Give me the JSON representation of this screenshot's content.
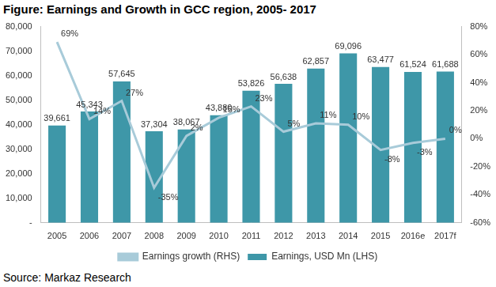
{
  "chart_data": {
    "type": "bar",
    "title": "Figure: Earnings and Growth in GCC region, 2005- 2017",
    "source": "Source: Markaz Research",
    "categories": [
      "2005",
      "2006",
      "2007",
      "2008",
      "2009",
      "2010",
      "2011",
      "2012",
      "2013",
      "2014",
      "2015",
      "2016e",
      "2017f"
    ],
    "series": [
      {
        "name": "Earnings, USD Mn (LHS)",
        "type": "bar",
        "color": "#3e97a8",
        "values": [
          39661,
          45343,
          57645,
          37304,
          38067,
          43880,
          53826,
          56638,
          62857,
          69096,
          63477,
          61524,
          61688
        ],
        "value_labels": [
          "39,661",
          "45,343",
          "57,645",
          "37,304",
          "38,067",
          "43,880",
          "53,826",
          "56,638",
          "62,857",
          "69,096",
          "63,477",
          "61,524",
          "61,688"
        ]
      },
      {
        "name": "Earnings growth (RHS)",
        "type": "line",
        "axis": "y2",
        "color": "#a8cbd9",
        "marker": "none",
        "values": [
          69,
          14,
          27,
          -35,
          2,
          15,
          23,
          5,
          11,
          10,
          -8,
          -3,
          0
        ],
        "value_labels": [
          "69%",
          "14%",
          "27%",
          "-35%",
          "2%",
          "15%",
          "23%",
          "5%",
          "11%",
          "10%",
          "-8%",
          "-3%",
          "0%"
        ]
      }
    ],
    "ylim": [
      0,
      80000
    ],
    "yticks": [
      {
        "value": 0,
        "label": "-"
      },
      {
        "value": 10000,
        "label": "10,000"
      },
      {
        "value": 20000,
        "label": "20,000"
      },
      {
        "value": 30000,
        "label": "30,000"
      },
      {
        "value": 40000,
        "label": "40,000"
      },
      {
        "value": 50000,
        "label": "50,000"
      },
      {
        "value": 60000,
        "label": "60,000"
      },
      {
        "value": 70000,
        "label": "70,000"
      },
      {
        "value": 80000,
        "label": "80,000"
      }
    ],
    "y2lim": [
      -60,
      80
    ],
    "y2ticks": [
      {
        "value": -60,
        "label": "-60%"
      },
      {
        "value": -40,
        "label": "-40%"
      },
      {
        "value": -20,
        "label": "-20%"
      },
      {
        "value": 0,
        "label": "0%"
      },
      {
        "value": 20,
        "label": "20%"
      },
      {
        "value": 40,
        "label": "40%"
      },
      {
        "value": 60,
        "label": "60%"
      },
      {
        "value": 80,
        "label": "80%"
      }
    ],
    "grid": false,
    "legend": "bottom",
    "data_labels": true
  }
}
